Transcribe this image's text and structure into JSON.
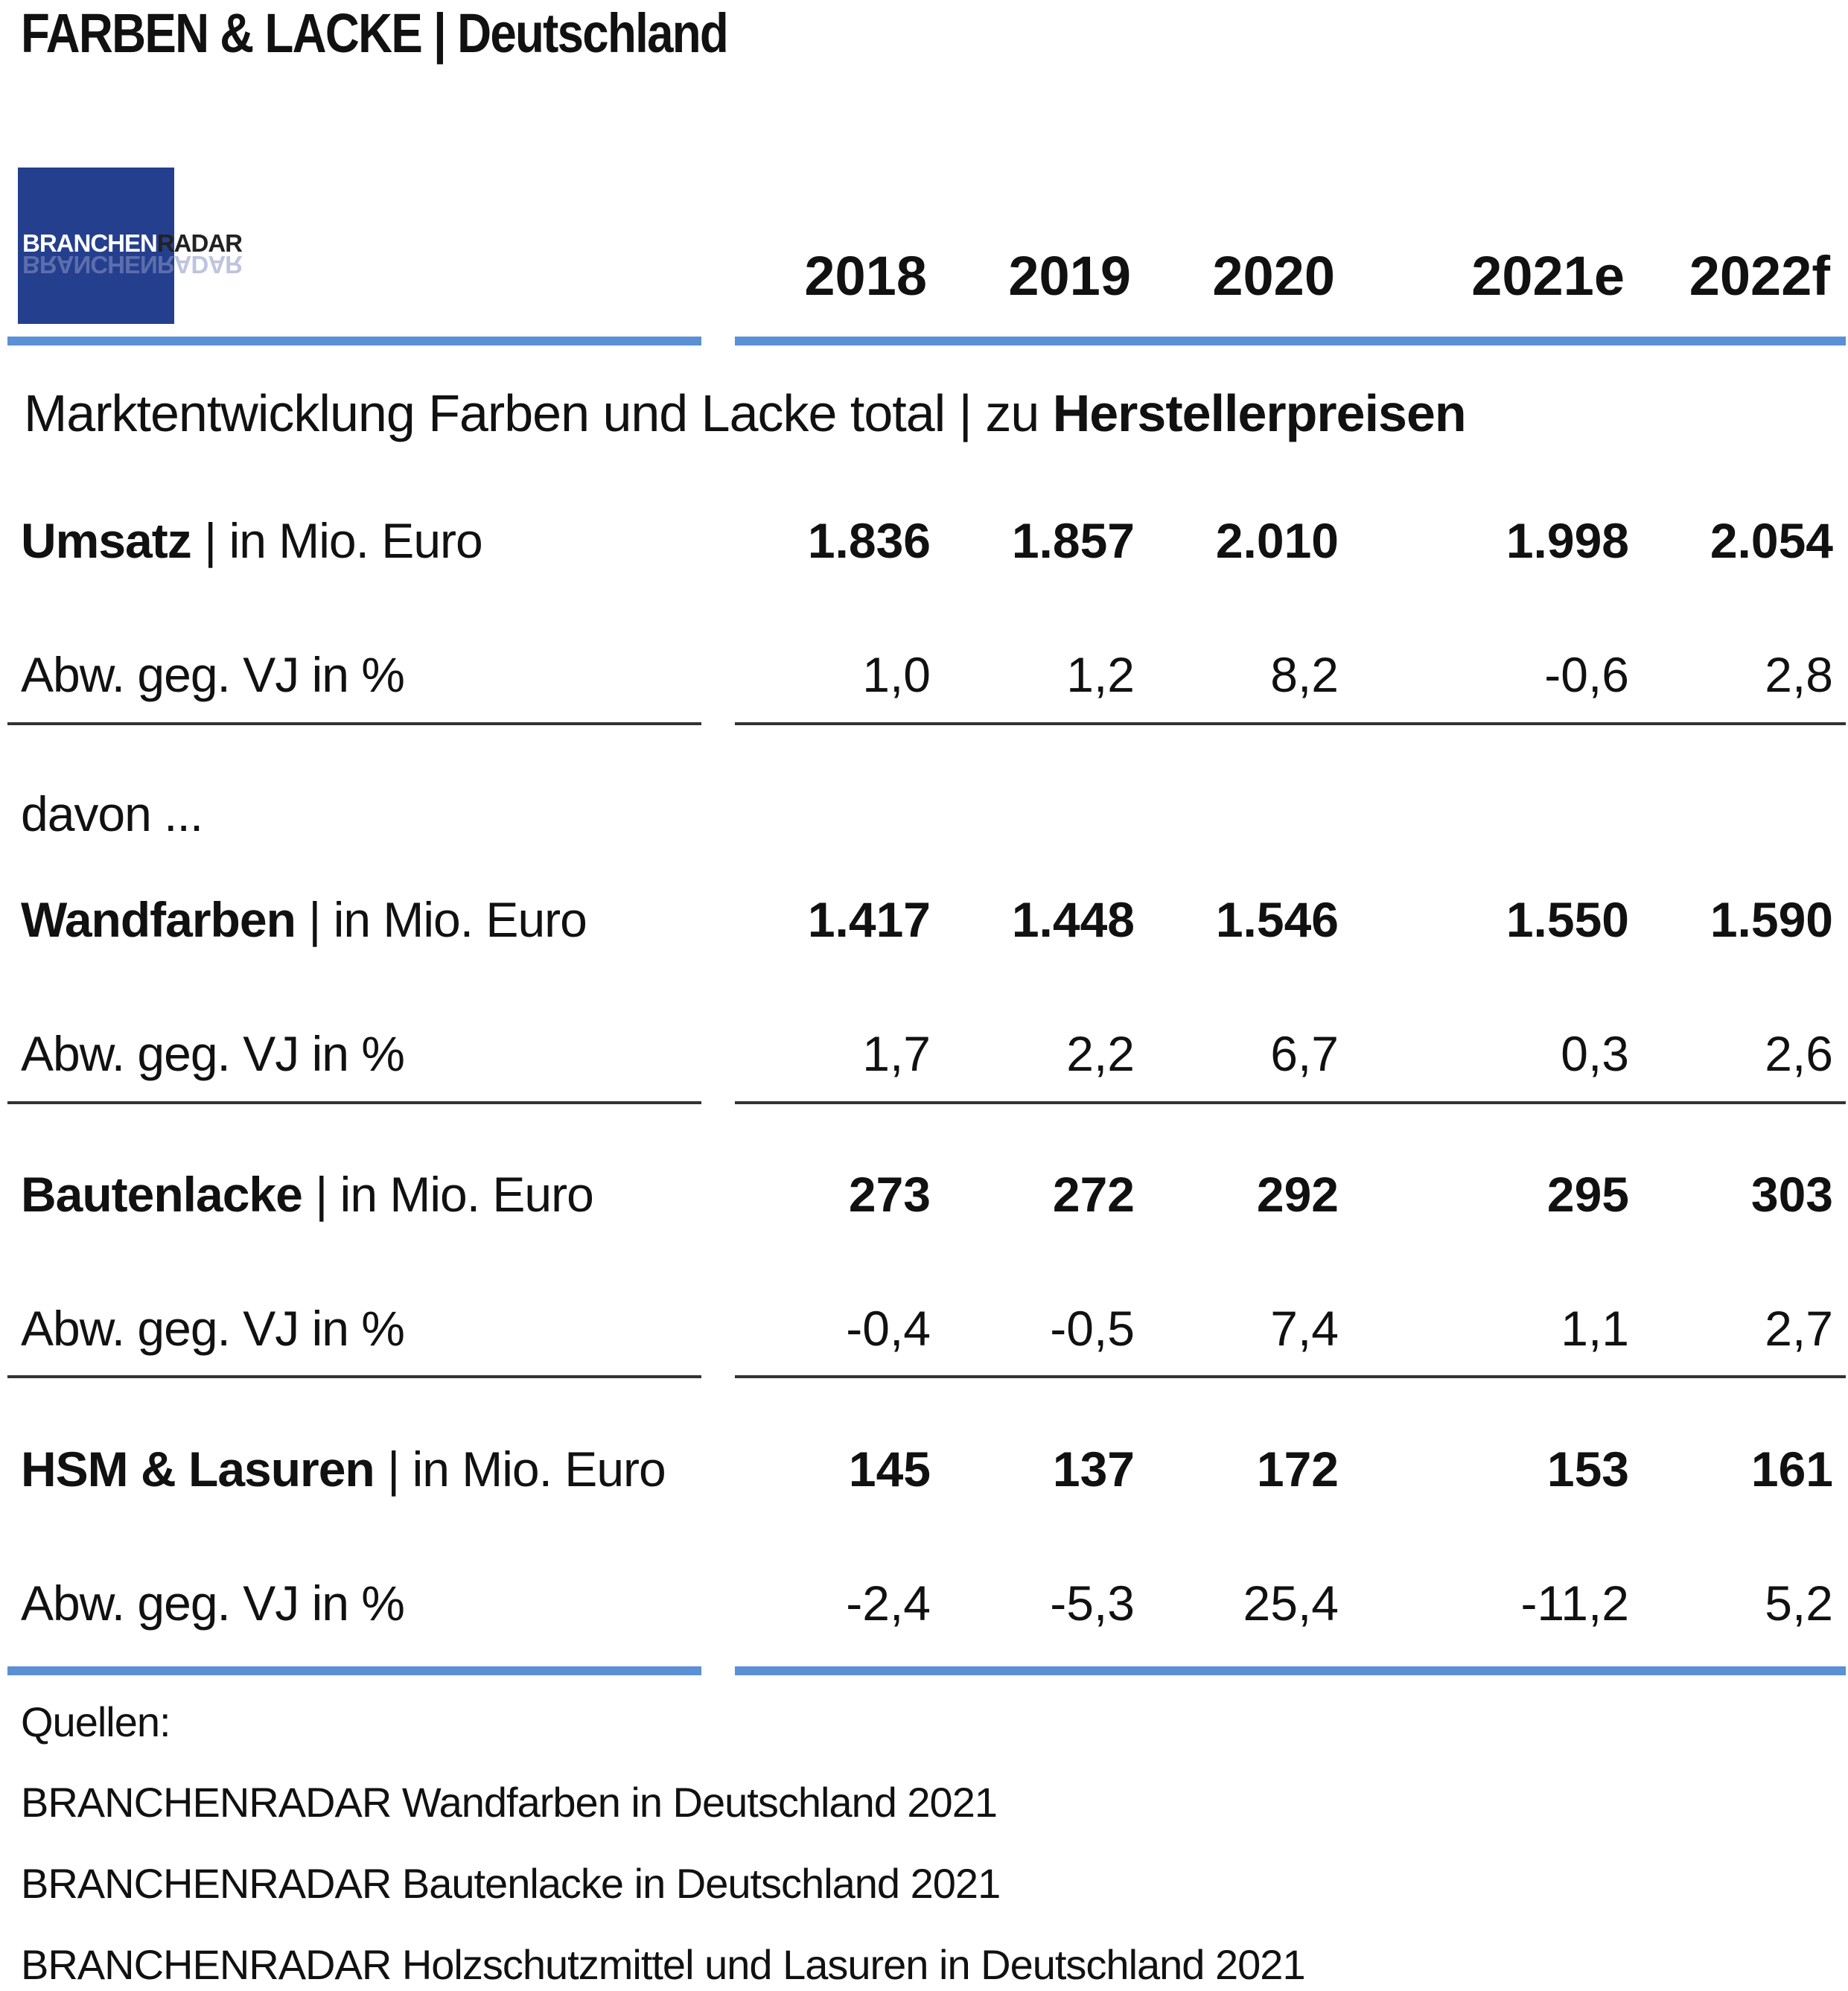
{
  "title": "FARBEN & LACKE | Deutschland",
  "logo": {
    "part1": "BRANCHEN",
    "part2": "RADAR"
  },
  "subtitle": {
    "normal": "Marktentwicklung Farben und Lacke total | zu ",
    "bold": "Herstellerpreisen"
  },
  "years": [
    "2018",
    "2019",
    "2020",
    "2021e",
    "2022f"
  ],
  "davon_label": "davon ...",
  "sections": [
    {
      "name": "Umsatz",
      "unit": " | in Mio. Euro",
      "values": [
        "1.836",
        "1.857",
        "2.010",
        "1.998",
        "2.054"
      ],
      "pct_label": "Abw. geg. VJ in %",
      "pct": [
        "1,0",
        "1,2",
        "8,2",
        "-0,6",
        "2,8"
      ]
    },
    {
      "name": "Wandfarben",
      "unit": " | in Mio. Euro",
      "values": [
        "1.417",
        "1.448",
        "1.546",
        "1.550",
        "1.590"
      ],
      "pct_label": "Abw. geg. VJ in %",
      "pct": [
        "1,7",
        "2,2",
        "6,7",
        "0,3",
        "2,6"
      ]
    },
    {
      "name": "Bautenlacke",
      "unit": " | in Mio. Euro",
      "values": [
        "273",
        "272",
        "292",
        "295",
        "303"
      ],
      "pct_label": "Abw. geg. VJ in %",
      "pct": [
        "-0,4",
        "-0,5",
        "7,4",
        "1,1",
        "2,7"
      ]
    },
    {
      "name": "HSM & Lasuren",
      "unit": " | in Mio. Euro",
      "values": [
        "145",
        "137",
        "172",
        "153",
        "161"
      ],
      "pct_label": "Abw. geg. VJ in %",
      "pct": [
        "-2,4",
        "-5,3",
        "25,4",
        "-11,2",
        "5,2"
      ]
    }
  ],
  "sources": {
    "heading": "Quellen:",
    "items": [
      "BRANCHENRADAR Wandfarben in Deutschland 2021",
      "BRANCHENRADAR Bautenlacke in Deutschland 2021",
      "BRANCHENRADAR Holzschutzmittel und Lasuren in Deutschland 2021"
    ]
  },
  "colors": {
    "accent_rule": "#5b8fd6",
    "logo_bg": "#253f8f",
    "divider": "#333333"
  },
  "chart_data": {
    "type": "table",
    "title": "FARBEN & LACKE | Deutschland",
    "subtitle": "Marktentwicklung Farben und Lacke total | zu Herstellerpreisen",
    "columns": [
      "2018",
      "2019",
      "2020",
      "2021e",
      "2022f"
    ],
    "rows": [
      {
        "label": "Umsatz | in Mio. Euro",
        "values": [
          1836,
          1857,
          2010,
          1998,
          2054
        ]
      },
      {
        "label": "Abw. geg. VJ in %",
        "values": [
          1.0,
          1.2,
          8.2,
          -0.6,
          2.8
        ]
      },
      {
        "label": "Wandfarben | in Mio. Euro",
        "values": [
          1417,
          1448,
          1546,
          1550,
          1590
        ]
      },
      {
        "label": "Abw. geg. VJ in %",
        "values": [
          1.7,
          2.2,
          6.7,
          0.3,
          2.6
        ]
      },
      {
        "label": "Bautenlacke | in Mio. Euro",
        "values": [
          273,
          272,
          292,
          295,
          303
        ]
      },
      {
        "label": "Abw. geg. VJ in %",
        "values": [
          -0.4,
          -0.5,
          7.4,
          1.1,
          2.7
        ]
      },
      {
        "label": "HSM & Lasuren | in Mio. Euro",
        "values": [
          145,
          137,
          172,
          153,
          161
        ]
      },
      {
        "label": "Abw. geg. VJ in %",
        "values": [
          -2.4,
          -5.3,
          25.4,
          -11.2,
          5.2
        ]
      }
    ]
  }
}
